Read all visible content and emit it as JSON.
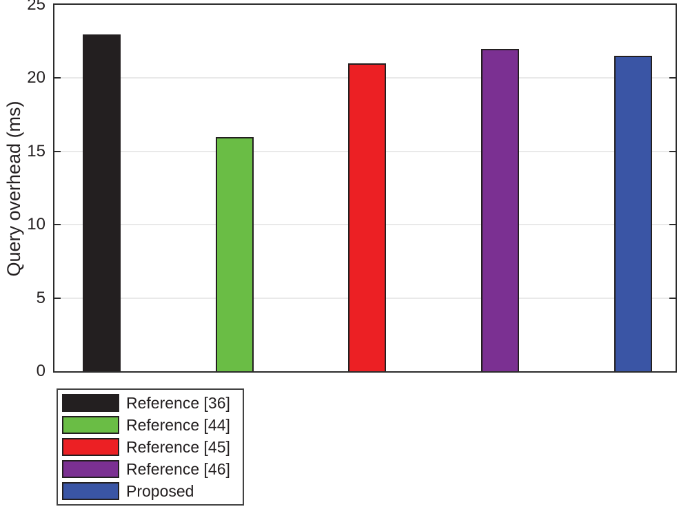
{
  "chart_data": {
    "type": "bar",
    "categories": [
      "Reference [36]",
      "Reference [44]",
      "Reference [45]",
      "Reference [46]",
      "Proposed"
    ],
    "values": [
      23,
      16,
      21,
      22,
      21.5
    ],
    "bar_colors": [
      "#231f20",
      "#6abd45",
      "#ec2024",
      "#7b3092",
      "#3a55a5"
    ],
    "title": "",
    "xlabel": "",
    "ylabel": "Query overhead (ms)",
    "ylim": [
      0,
      25
    ],
    "yticks": [
      0,
      5,
      10,
      15,
      20,
      25
    ],
    "grid": "horizontal-on",
    "grid_color": "#e9e9e9",
    "axis_color": "#2b2b2b",
    "bar_edge_color": "#231f20",
    "legend_position": "below-plot-left",
    "legend": [
      {
        "label": "Reference [36]",
        "color": "#231f20"
      },
      {
        "label": "Reference [44]",
        "color": "#6abd45"
      },
      {
        "label": "Reference [45]",
        "color": "#ec2024"
      },
      {
        "label": "Reference [46]",
        "color": "#7b3092"
      },
      {
        "label": "Proposed",
        "color": "#3a55a5"
      }
    ]
  }
}
